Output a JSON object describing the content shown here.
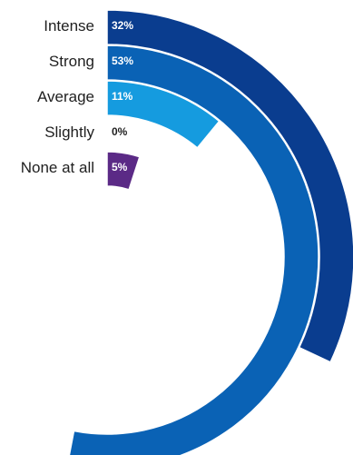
{
  "chart_data": {
    "type": "radial_bar",
    "categories": [
      "Intense",
      "Strong",
      "Average",
      "Slightly",
      "None at all"
    ],
    "values": [
      32,
      53,
      11,
      0,
      5
    ],
    "value_labels": [
      "32%",
      "53%",
      "11%",
      "0%",
      "5%"
    ],
    "value_unit": "%",
    "scale_max": 100,
    "colors": [
      "#0a3d8f",
      "#0a62b5",
      "#159bdf",
      "#0a62b5",
      "#5b2a86"
    ],
    "value_label_colors": [
      "#ffffff",
      "#ffffff",
      "#ffffff",
      "#1f1f1f",
      "#ffffff"
    ],
    "grid": false,
    "legend": "none"
  }
}
